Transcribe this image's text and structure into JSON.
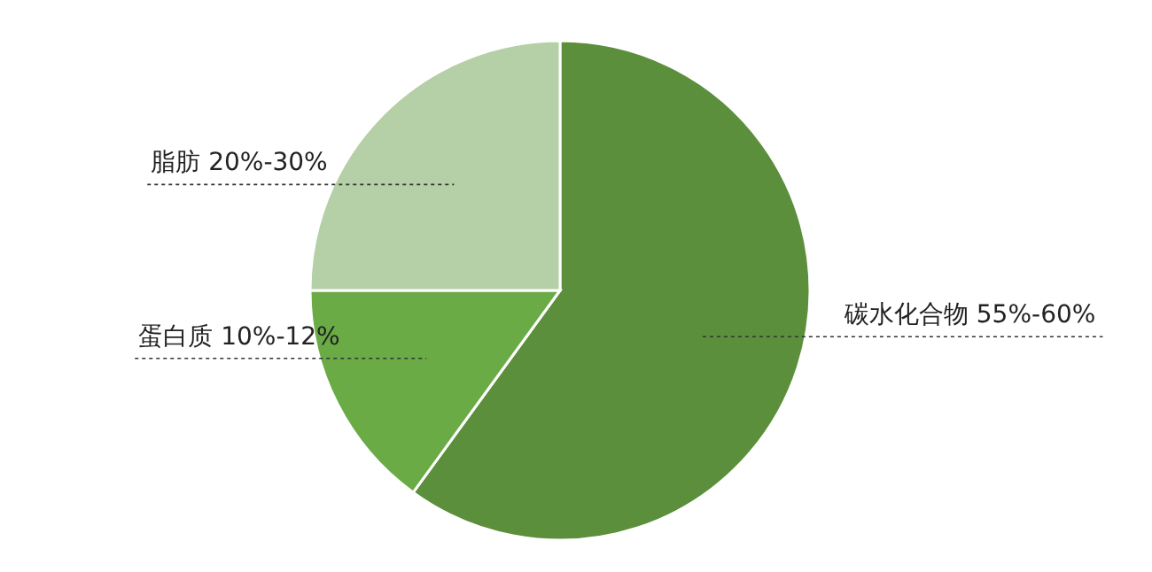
{
  "chart_data": {
    "type": "pie",
    "categories": [
      "碳水化合物 55%-60%",
      "蛋白质 10%-12%",
      "脂肪 20%-30%"
    ],
    "values": [
      60,
      15,
      25
    ],
    "colors": [
      "#5b8f3b",
      "#6aab46",
      "#b5cfa6"
    ]
  }
}
